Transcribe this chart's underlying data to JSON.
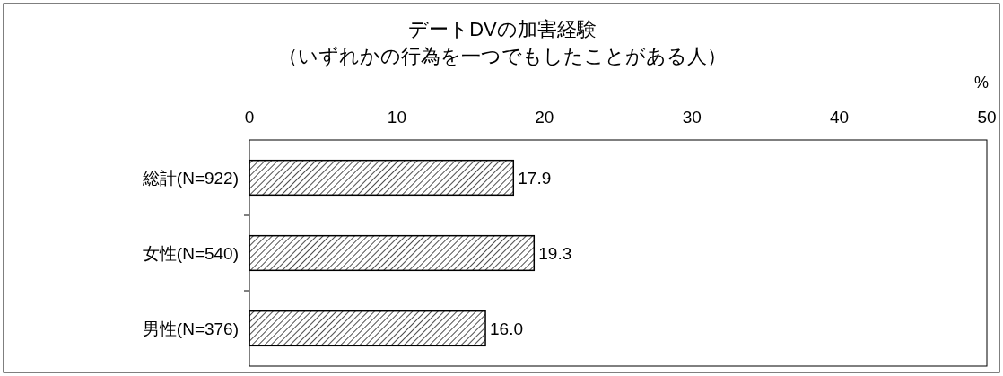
{
  "chart_data": {
    "type": "bar",
    "orientation": "horizontal",
    "title": "デートDVの加害経験",
    "subtitle": "（いずれかの行為を一つでもしたことがある人）",
    "xlabel": "%",
    "categories": [
      "総計(N=922)",
      "女性(N=540)",
      "男性(N=376)"
    ],
    "values": [
      17.9,
      19.3,
      16.0
    ],
    "value_labels": [
      "17.9",
      "19.3",
      "16.0"
    ],
    "color": "#000000",
    "xlim": [
      0,
      50
    ],
    "xticks": [
      0,
      10,
      20,
      30,
      40,
      50
    ],
    "grid": false
  }
}
